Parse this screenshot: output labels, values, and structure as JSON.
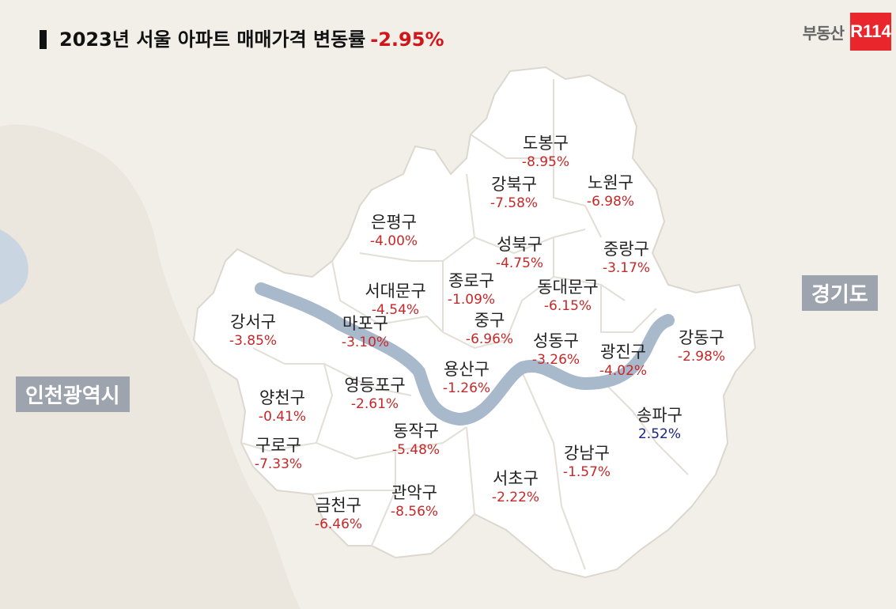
{
  "header": {
    "title": "2023년 서울 아파트 매매가격 변동률",
    "overall_rate": "-2.95%"
  },
  "brand": {
    "text": "부동산",
    "logo": "R114",
    "color": "#e8262b"
  },
  "regions": {
    "left": "인천광역시",
    "right": "경기도"
  },
  "colors": {
    "negative": "#c62828",
    "positive": "#1a237e",
    "river": "#a9b9cc",
    "seoul_fill": "#ffffff",
    "background": "#f2efe9"
  },
  "districts": [
    {
      "name": "도봉구",
      "rate": "-8.95%"
    },
    {
      "name": "강북구",
      "rate": "-7.58%"
    },
    {
      "name": "노원구",
      "rate": "-6.98%"
    },
    {
      "name": "은평구",
      "rate": "-4.00%"
    },
    {
      "name": "성북구",
      "rate": "-4.75%"
    },
    {
      "name": "중랑구",
      "rate": "-3.17%"
    },
    {
      "name": "서대문구",
      "rate": "-4.54%"
    },
    {
      "name": "종로구",
      "rate": "-1.09%"
    },
    {
      "name": "동대문구",
      "rate": "-6.15%"
    },
    {
      "name": "강서구",
      "rate": "-3.85%"
    },
    {
      "name": "마포구",
      "rate": "-3.10%"
    },
    {
      "name": "중구",
      "rate": "-6.96%"
    },
    {
      "name": "성동구",
      "rate": "-3.26%"
    },
    {
      "name": "광진구",
      "rate": "-4.02%"
    },
    {
      "name": "강동구",
      "rate": "-2.98%"
    },
    {
      "name": "용산구",
      "rate": "-1.26%"
    },
    {
      "name": "영등포구",
      "rate": "-2.61%"
    },
    {
      "name": "양천구",
      "rate": "-0.41%"
    },
    {
      "name": "송파구",
      "rate": "2.52%"
    },
    {
      "name": "동작구",
      "rate": "-5.48%"
    },
    {
      "name": "구로구",
      "rate": "-7.33%"
    },
    {
      "name": "강남구",
      "rate": "-1.57%"
    },
    {
      "name": "서초구",
      "rate": "-2.22%"
    },
    {
      "name": "관악구",
      "rate": "-8.56%"
    },
    {
      "name": "금천구",
      "rate": "-6.46%"
    }
  ]
}
